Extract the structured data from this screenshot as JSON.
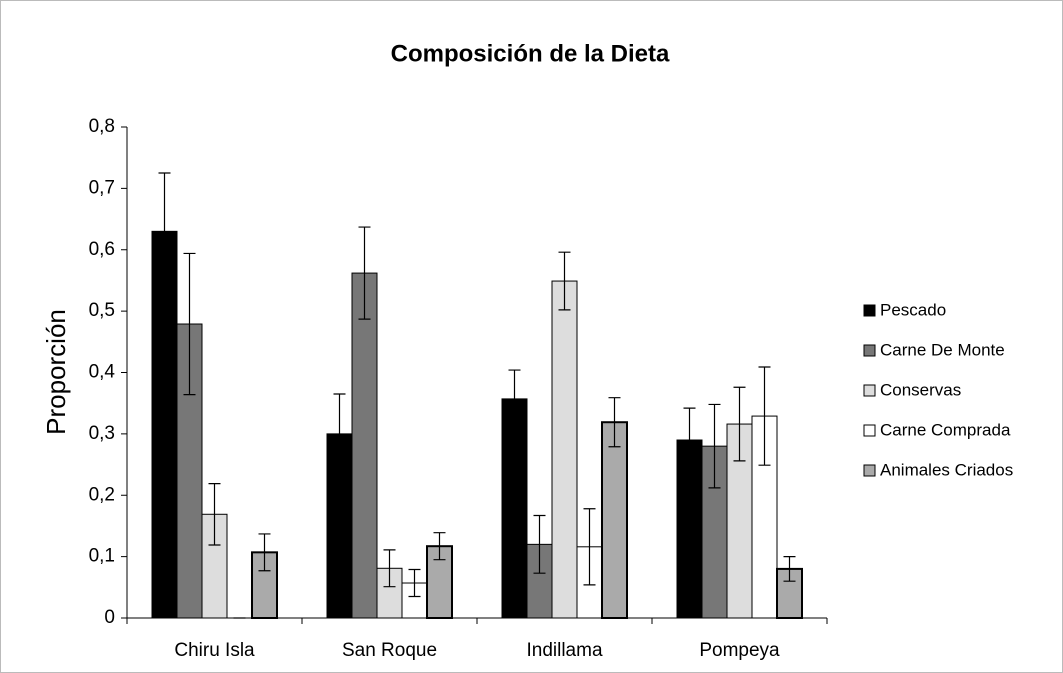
{
  "chart_data": {
    "type": "bar",
    "title": "Composición de la Dieta",
    "y_label": "Proporción",
    "categories": [
      "Chiru Isla",
      "San Roque",
      "Indillama",
      "Pompeya"
    ],
    "series": [
      {
        "name": "Pescado",
        "color": "#000000",
        "values": [
          0.63,
          0.3,
          0.357,
          0.29
        ],
        "errors": [
          0.095,
          0.065,
          0.047,
          0.052
        ]
      },
      {
        "name": "Carne De Monte",
        "color": "#777777",
        "values": [
          0.479,
          0.562,
          0.12,
          0.28
        ],
        "errors": [
          0.115,
          0.075,
          0.047,
          0.068
        ]
      },
      {
        "name": "Conservas",
        "color": "#dddddd",
        "values": [
          0.169,
          0.081,
          0.549,
          0.316
        ],
        "errors": [
          0.05,
          0.03,
          0.047,
          0.06
        ]
      },
      {
        "name": "Carne Comprada",
        "color": "#ffffff",
        "values": [
          0,
          0.057,
          0.116,
          0.329
        ],
        "errors": [
          0,
          0.022,
          0.062,
          0.08
        ]
      },
      {
        "name": "Animales Criados",
        "color": "#aaaaaa",
        "values": [
          0.107,
          0.117,
          0.319,
          0.08
        ],
        "errors": [
          0.03,
          0.022,
          0.04,
          0.02
        ]
      }
    ],
    "ylim": [
      0,
      0.8
    ],
    "yticks": [
      0,
      {
        "value": 0.1,
        "label": "0,1"
      },
      {
        "value": 0.2,
        "label": "0,2"
      },
      {
        "value": 0.3,
        "label": "0,3"
      },
      {
        "value": 0.4,
        "label": "0,4"
      },
      {
        "value": 0.5,
        "label": "0,5"
      },
      {
        "value": 0.6,
        "label": "0,6"
      },
      {
        "value": 0.7,
        "label": "0,7"
      },
      {
        "value": 0.8,
        "label": "0,8"
      }
    ],
    "legend": "right"
  }
}
